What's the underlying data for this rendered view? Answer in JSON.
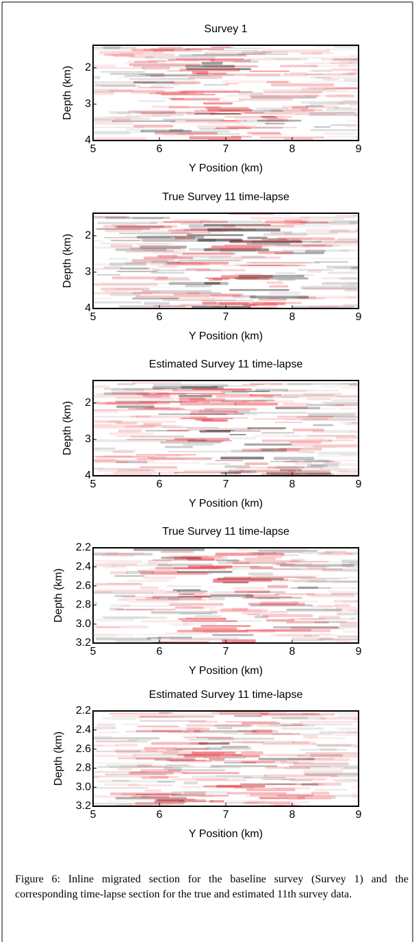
{
  "chart_data": [
    {
      "type": "image",
      "title": "Survey 1",
      "xlabel": "Y Position (km)",
      "ylabel": "Depth (km)",
      "xlim": [
        5,
        9
      ],
      "ylim": [
        4,
        1.38
      ],
      "xticks": [
        5,
        6,
        7,
        8,
        9
      ],
      "yticks": [
        2,
        3,
        4
      ]
    },
    {
      "type": "image",
      "title": "True Survey 11 time-lapse",
      "xlabel": "Y Position (km)",
      "ylabel": "Depth (km)",
      "xlim": [
        5,
        9
      ],
      "ylim": [
        4,
        1.38
      ],
      "xticks": [
        5,
        6,
        7,
        8,
        9
      ],
      "yticks": [
        2,
        3,
        4
      ]
    },
    {
      "type": "image",
      "title": "Estimated Survey 11 time-lapse",
      "xlabel": "Y Position (km)",
      "ylabel": "Depth (km)",
      "xlim": [
        5,
        9
      ],
      "ylim": [
        4,
        1.38
      ],
      "xticks": [
        5,
        6,
        7,
        8,
        9
      ],
      "yticks": [
        2,
        3,
        4
      ]
    },
    {
      "type": "image",
      "title": "True Survey 11 time-lapse",
      "xlabel": "Y Position (km)",
      "ylabel": "Depth (km)",
      "xlim": [
        5,
        9
      ],
      "ylim": [
        3.2,
        2.2
      ],
      "xticks": [
        5,
        6,
        7,
        8,
        9
      ],
      "yticks": [
        2.2,
        2.4,
        2.6,
        2.8,
        {
          "value": 3,
          "label": "3.0"
        },
        3.2
      ]
    },
    {
      "type": "image",
      "title": "Estimated Survey 11 time-lapse",
      "xlabel": "Y Position (km)",
      "ylabel": "Depth (km)",
      "xlim": [
        5,
        9
      ],
      "ylim": [
        3.2,
        2.2
      ],
      "xticks": [
        5,
        6,
        7,
        8,
        9
      ],
      "yticks": [
        2.2,
        2.4,
        2.6,
        2.8,
        {
          "value": 3,
          "label": "3.0"
        },
        3.2
      ]
    }
  ],
  "caption": "Figure 6: Inline migrated section for the baseline survey (Survey 1) and the corresponding time-lapse section for the true and estimated 11th survey data."
}
